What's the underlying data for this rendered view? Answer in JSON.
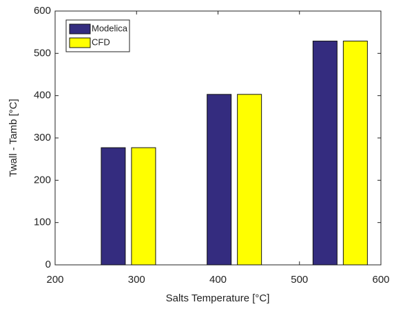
{
  "chart_data": {
    "type": "bar",
    "x": [
      290,
      420,
      550
    ],
    "series": [
      {
        "name": "Modelica",
        "color": "#342c7f",
        "values": [
          277,
          403,
          529
        ]
      },
      {
        "name": "CFD",
        "color": "#ffff00",
        "values": [
          277,
          403,
          529
        ]
      }
    ],
    "xlabel": "Salts Temperature [°C]",
    "ylabel": "Twall - Tamb [°C]",
    "xlim": [
      200,
      600
    ],
    "xticks": [
      200,
      300,
      400,
      500,
      600
    ],
    "ylim": [
      0,
      600
    ],
    "yticks": [
      0,
      100,
      200,
      300,
      400,
      500,
      600
    ],
    "legend": "upper-left",
    "grid": false
  }
}
